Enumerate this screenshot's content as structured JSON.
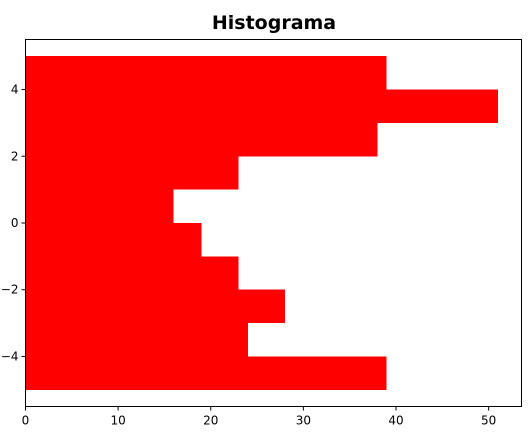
{
  "chart_data": {
    "type": "bar",
    "orientation": "horizontal",
    "title": "Histograma",
    "xlabel": "",
    "ylabel": "",
    "bar_color": "#ff0000",
    "bins": [
      {
        "y0": -5,
        "y1": -4,
        "count": 39
      },
      {
        "y0": -4,
        "y1": -3,
        "count": 24
      },
      {
        "y0": -3,
        "y1": -2,
        "count": 28
      },
      {
        "y0": -2,
        "y1": -1,
        "count": 23
      },
      {
        "y0": -1,
        "y1": 0,
        "count": 19
      },
      {
        "y0": 0,
        "y1": 1,
        "count": 16
      },
      {
        "y0": 1,
        "y1": 2,
        "count": 23
      },
      {
        "y0": 2,
        "y1": 3,
        "count": 38
      },
      {
        "y0": 3,
        "y1": 4,
        "count": 51
      },
      {
        "y0": 4,
        "y1": 5,
        "count": 39
      }
    ],
    "xlim": [
      0,
      53.55
    ],
    "ylim": [
      -5.5,
      5.5
    ],
    "xticks": [
      0,
      10,
      20,
      30,
      40,
      50
    ],
    "yticks": [
      -4,
      -2,
      0,
      2,
      4
    ],
    "ytick_labels": [
      "−4",
      "−2",
      "0",
      "2",
      "4"
    ],
    "grid": false
  }
}
